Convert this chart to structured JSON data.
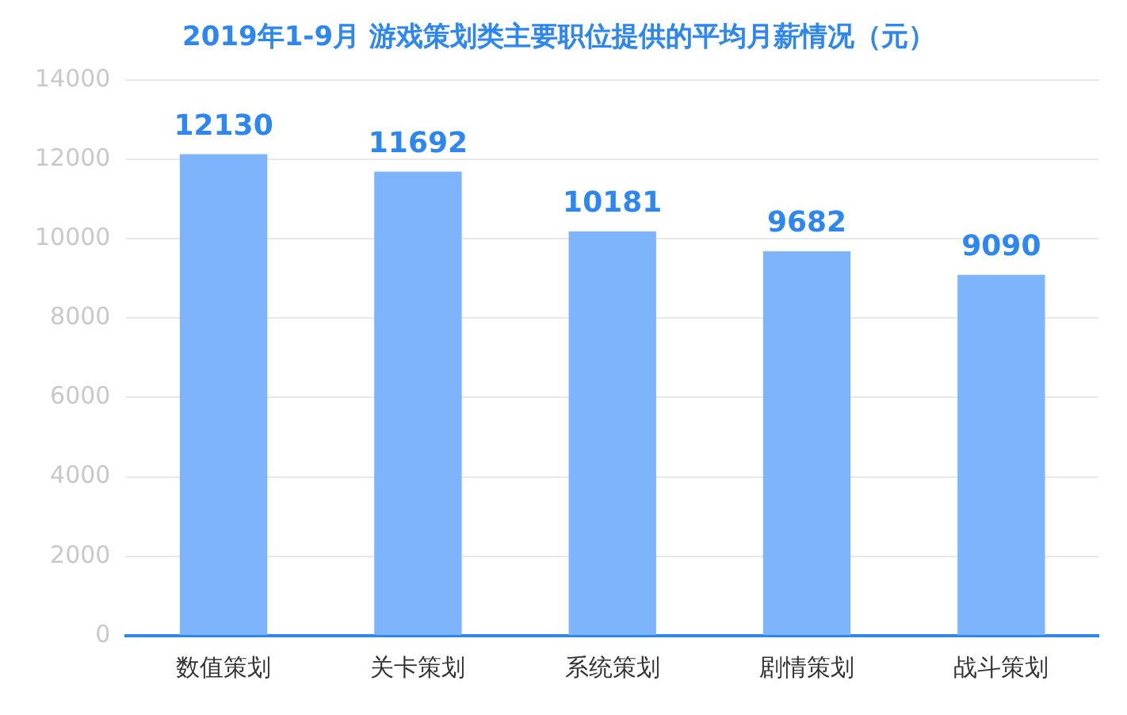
{
  "chart_data": {
    "type": "bar",
    "title": "2019年1-9月 游戏策划类主要职位提供的平均月薪情况（元）",
    "categories": [
      "数值策划",
      "关卡策划",
      "系统策划",
      "剧情策划",
      "战斗策划"
    ],
    "values": [
      12130,
      11692,
      10181,
      9682,
      9090
    ],
    "color": "#7eb4fb",
    "ylim": [
      0,
      14000
    ],
    "yticks": [
      0,
      2000,
      4000,
      6000,
      8000,
      10000,
      12000,
      14000
    ],
    "grid": "y",
    "data_labels": true,
    "legend": false
  }
}
